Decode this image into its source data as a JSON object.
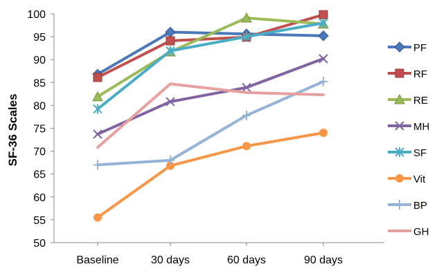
{
  "chart_data": {
    "type": "line",
    "ylabel": "SF-36 Scales",
    "xlabel": "",
    "categories": [
      "Baseline",
      "30 days",
      "60 days",
      "90 days"
    ],
    "ylim": [
      50,
      100
    ],
    "yticks": [
      50,
      55,
      60,
      65,
      70,
      75,
      80,
      85,
      90,
      95,
      100
    ],
    "grid": false,
    "legend_position": "right",
    "series": [
      {
        "name": "PF",
        "values": [
          86.8,
          96.0,
          95.6,
          95.2
        ],
        "color": "#4a78b8",
        "marker": "diamond"
      },
      {
        "name": "RF",
        "values": [
          86.1,
          94.1,
          94.9,
          99.8
        ],
        "color": "#c0504d",
        "marker": "square"
      },
      {
        "name": "RE",
        "values": [
          81.9,
          91.7,
          99.1,
          97.8
        ],
        "color": "#9bbb59",
        "marker": "triangle"
      },
      {
        "name": "MH",
        "values": [
          73.7,
          80.8,
          83.9,
          90.2
        ],
        "color": "#8064a2",
        "marker": "x"
      },
      {
        "name": "SF",
        "values": [
          79.2,
          91.9,
          95.0,
          98.0
        ],
        "color": "#4bacc6",
        "marker": "star"
      },
      {
        "name": "Vit",
        "values": [
          55.5,
          66.8,
          71.1,
          74.0
        ],
        "color": "#f79646",
        "marker": "circle"
      },
      {
        "name": "BP",
        "values": [
          67.0,
          68.0,
          77.8,
          85.2
        ],
        "color": "#95b3d7",
        "marker": "plus"
      },
      {
        "name": "GH",
        "values": [
          70.8,
          84.7,
          82.8,
          82.3
        ],
        "color": "#e6a0a0",
        "marker": "none"
      }
    ]
  }
}
